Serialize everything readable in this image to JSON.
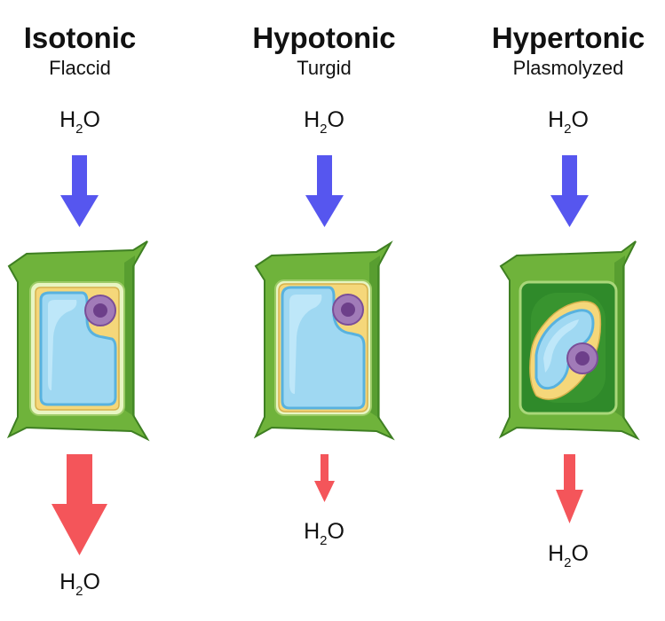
{
  "columns": [
    {
      "title": "Isotonic",
      "subtitle": "Flaccid",
      "in_label": {
        "main": "H",
        "sub": "2",
        "tail": "O"
      },
      "out_label": {
        "main": "H",
        "sub": "2",
        "tail": "O"
      },
      "efflux": "large"
    },
    {
      "title": "Hypotonic",
      "subtitle": "Turgid",
      "in_label": {
        "main": "H",
        "sub": "2",
        "tail": "O"
      },
      "out_label": {
        "main": "H",
        "sub": "2",
        "tail": "O"
      },
      "efflux": "small"
    },
    {
      "title": "Hypertonic",
      "subtitle": "Plasmolyzed",
      "in_label": {
        "main": "H",
        "sub": "2",
        "tail": "O"
      },
      "out_label": {
        "main": "H",
        "sub": "2",
        "tail": "O"
      },
      "efflux": "medium"
    }
  ],
  "colors": {
    "influx_arrow": "#5656ef",
    "efflux_arrow": "#f4555a",
    "cell_wall": "#6fb33b",
    "cell_wall_dark": "#4a8f2a",
    "cell_membrane_fill": "#e8f5c2",
    "cytoplasm": "#f5d77a",
    "vacuole": "#9fd8f2",
    "vacuole_edge": "#58b2df",
    "nucleus": "#a17bb8",
    "nucleolus": "#6d3f8a",
    "plasmolyzed_space": "#2f8a2a"
  }
}
